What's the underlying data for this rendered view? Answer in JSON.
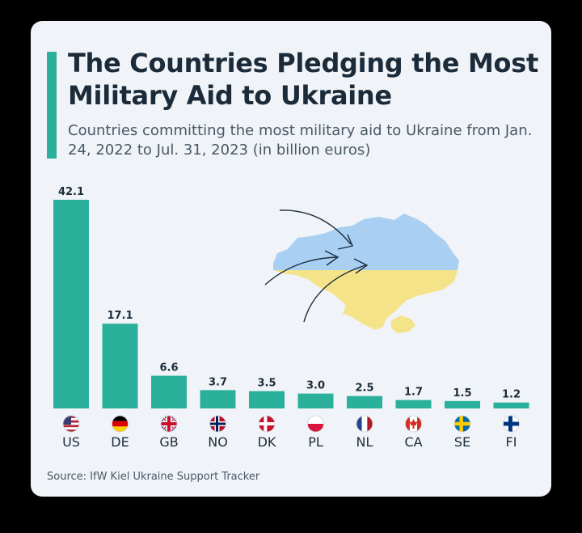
{
  "title": "The Countries Pledging the Most Military Aid to Ukraine",
  "subtitle": "Countries committing the most military aid to Ukraine from Jan. 24, 2022 to Jul. 31, 2023 (in billion euros)",
  "source": "Source: IfW Kiel Ukraine Support Tracker",
  "colors": {
    "bar": "#2ab09b",
    "map_blue": "#a9d0f2",
    "map_yellow": "#f5e38a",
    "text_dark": "#1c2b3a"
  },
  "chart_data": {
    "type": "bar",
    "categories": [
      "US",
      "DE",
      "GB",
      "NO",
      "DK",
      "PL",
      "NL",
      "CA",
      "SE",
      "FI"
    ],
    "values": [
      42.1,
      17.1,
      6.6,
      3.7,
      3.5,
      3.0,
      2.5,
      1.7,
      1.5,
      1.2
    ],
    "value_labels": [
      "42.1",
      "17.1",
      "6.6",
      "3.7",
      "3.5",
      "3.0",
      "2.5",
      "1.7",
      "1.5",
      "1.2"
    ],
    "title": "The Countries Pledging the Most Military Aid to Ukraine",
    "xlabel": "",
    "ylabel": "",
    "ylim": [
      0,
      42.1
    ],
    "grid": false,
    "legend": "none",
    "flag_icons": [
      "us-flag-icon",
      "de-flag-icon",
      "gb-flag-icon",
      "no-flag-icon",
      "dk-flag-icon",
      "pl-flag-icon",
      "nl-flag-icon",
      "ca-flag-icon",
      "se-flag-icon",
      "fi-flag-icon"
    ]
  }
}
